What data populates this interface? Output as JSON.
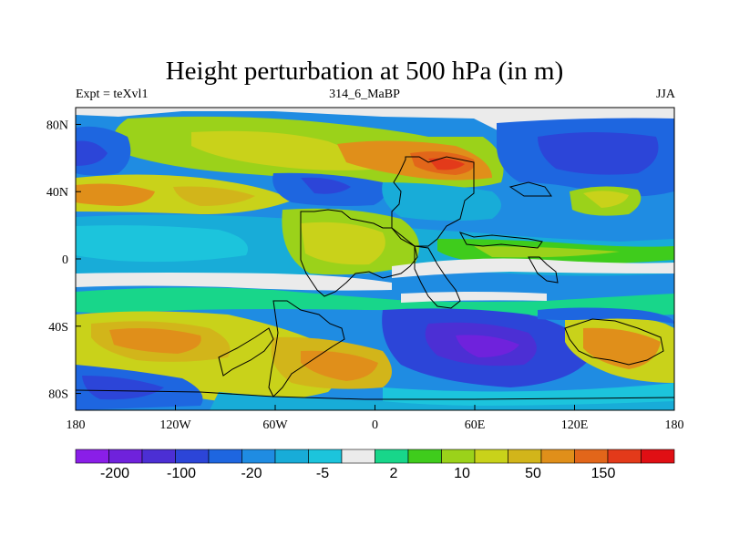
{
  "title": "Height perturbation at 500 hPa (in m)",
  "subtitle_left": "Expt = teXvl1",
  "subtitle_center": "314_6_MaBP",
  "subtitle_right": "JJA",
  "map": {
    "x_ticks": [
      "180",
      "120W",
      "60W",
      "0",
      "60E",
      "120E",
      "180"
    ],
    "y_ticks": [
      "80N",
      "40N",
      "0",
      "40S",
      "80S"
    ]
  },
  "colorbar": {
    "colors": [
      "#8a1ee8",
      "#6f22dc",
      "#4c2fd4",
      "#2c45d8",
      "#1e66e0",
      "#1f8ce2",
      "#18acd8",
      "#1cc4dc",
      "#ebebeb",
      "#18d68a",
      "#3fcc1c",
      "#9bd21a",
      "#c9d21a",
      "#d2b51a",
      "#e08f1a",
      "#e2661a",
      "#e33a1a",
      "#e00f14"
    ],
    "labels": [
      "-200",
      "-100",
      "-20",
      "-5",
      "2",
      "10",
      "50",
      "150"
    ]
  }
}
